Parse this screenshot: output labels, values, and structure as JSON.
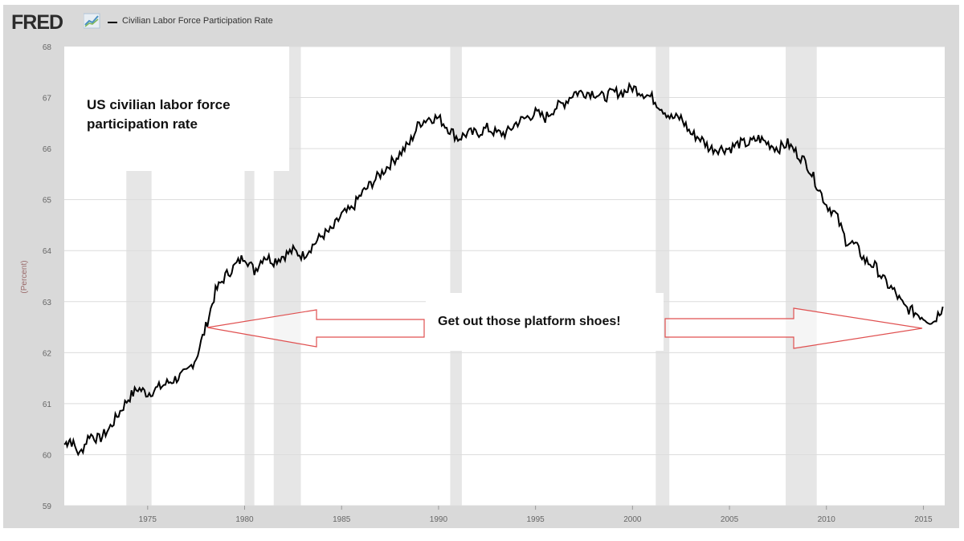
{
  "header": {
    "logo_text": "FRED",
    "legend_label": "Civilian Labor Force Participation Rate"
  },
  "colors": {
    "frame": "#d9d9d9",
    "series": "#000000",
    "recession": "#e6e6e6",
    "arrow": "#e05050"
  },
  "chart_data": {
    "type": "line",
    "title": "",
    "xlabel": "",
    "ylabel": "(Percent)",
    "xlim": [
      1970.7,
      2016.1
    ],
    "ylim": [
      59,
      68
    ],
    "yticks": [
      "59",
      "60",
      "61",
      "62",
      "63",
      "64",
      "65",
      "66",
      "67",
      "68"
    ],
    "xticks": [
      "1975",
      "1980",
      "1985",
      "1990",
      "1995",
      "2000",
      "2005",
      "2010",
      "2015"
    ],
    "grid": true,
    "recessions": [
      {
        "start": 1973.9,
        "end": 1975.2
      },
      {
        "start": 1980.0,
        "end": 1980.5
      },
      {
        "start": 1981.5,
        "end": 1982.9
      },
      {
        "start": 1990.6,
        "end": 1991.2
      },
      {
        "start": 2001.2,
        "end": 2001.9
      },
      {
        "start": 2007.9,
        "end": 2009.5
      }
    ],
    "series": [
      {
        "name": "Civilian Labor Force Participation Rate",
        "x": [
          1970.7,
          1971.0,
          1971.5,
          1972.0,
          1972.5,
          1973.0,
          1973.5,
          1974.0,
          1974.5,
          1975.0,
          1975.5,
          1976.0,
          1976.5,
          1977.0,
          1977.5,
          1978.0,
          1978.5,
          1979.0,
          1979.5,
          1980.0,
          1980.5,
          1981.0,
          1981.5,
          1982.0,
          1982.5,
          1983.0,
          1983.5,
          1984.0,
          1984.5,
          1985.0,
          1985.5,
          1986.0,
          1986.5,
          1987.0,
          1987.5,
          1988.0,
          1988.5,
          1989.0,
          1989.5,
          1990.0,
          1990.5,
          1991.0,
          1991.5,
          1992.0,
          1992.5,
          1993.0,
          1993.5,
          1994.0,
          1994.5,
          1995.0,
          1995.5,
          1996.0,
          1996.5,
          1997.0,
          1997.5,
          1998.0,
          1998.5,
          1999.0,
          1999.5,
          2000.0,
          2000.5,
          2001.0,
          2001.5,
          2002.0,
          2002.5,
          2003.0,
          2003.5,
          2004.0,
          2004.5,
          2005.0,
          2005.5,
          2006.0,
          2006.5,
          2007.0,
          2007.5,
          2008.0,
          2008.5,
          2009.0,
          2009.5,
          2010.0,
          2010.5,
          2011.0,
          2011.5,
          2012.0,
          2012.5,
          2013.0,
          2013.5,
          2014.0,
          2014.5,
          2015.0,
          2015.5,
          2016.0
        ],
        "values": [
          60.2,
          60.3,
          60.0,
          60.4,
          60.3,
          60.5,
          60.8,
          61.1,
          61.3,
          61.2,
          61.3,
          61.4,
          61.5,
          61.6,
          61.9,
          62.5,
          63.2,
          63.5,
          63.7,
          63.9,
          63.6,
          63.9,
          63.8,
          63.9,
          64.0,
          63.9,
          64.1,
          64.3,
          64.4,
          64.7,
          64.8,
          65.1,
          65.3,
          65.5,
          65.7,
          65.9,
          66.1,
          66.5,
          66.6,
          66.6,
          66.4,
          66.2,
          66.3,
          66.3,
          66.4,
          66.3,
          66.3,
          66.5,
          66.6,
          66.7,
          66.6,
          66.8,
          66.9,
          67.1,
          67.1,
          67.1,
          67.0,
          67.1,
          67.1,
          67.2,
          67.1,
          67.0,
          66.8,
          66.6,
          66.6,
          66.3,
          66.2,
          66.0,
          66.0,
          66.0,
          66.1,
          66.1,
          66.2,
          66.1,
          66.0,
          66.1,
          65.9,
          65.7,
          65.3,
          64.9,
          64.7,
          64.2,
          64.1,
          63.8,
          63.7,
          63.4,
          63.2,
          62.9,
          62.8,
          62.7,
          62.6,
          62.9
        ]
      }
    ],
    "annotations": {
      "box_text_line1": "US civilian labor force",
      "box_text_line2": "participation rate",
      "arrow_text": "Get out those platform shoes!"
    }
  }
}
